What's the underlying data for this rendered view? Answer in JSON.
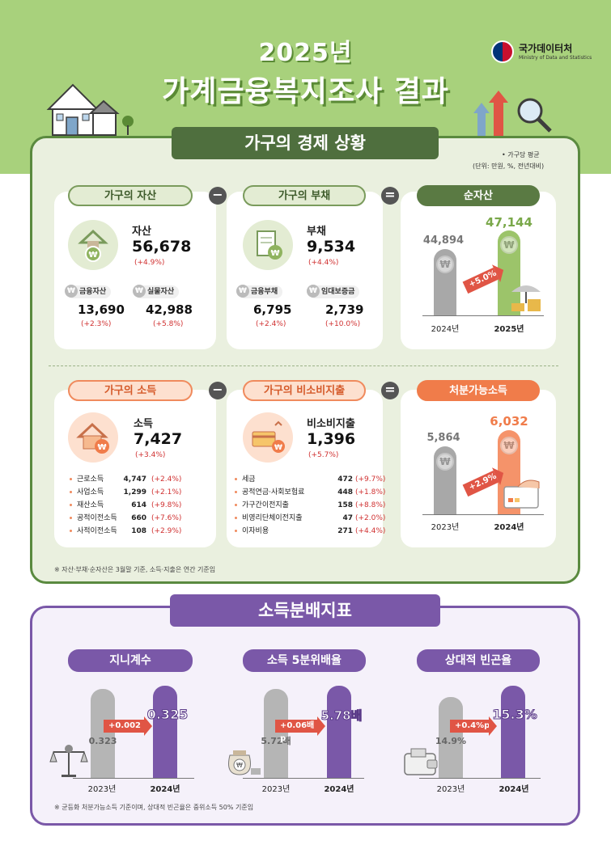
{
  "header": {
    "year": "2025년",
    "title": "가계금융복지조사 결과"
  },
  "logo": {
    "name_ko": "국가데이터처",
    "name_en": "Ministry of Data and Statistics"
  },
  "section1": {
    "title": "가구의 경제 상황",
    "unit_note1": "• 가구당 평균",
    "unit_note2": "(단위: 만원, %, 전년대비)"
  },
  "assets": {
    "pill": "가구의 자산",
    "label": "자산",
    "value": "56,678",
    "change": "(+4.9%)",
    "fin_label": "금융자산",
    "fin_value": "13,690",
    "fin_change": "(+2.3%)",
    "real_label": "실물자산",
    "real_value": "42,988",
    "real_change": "(+5.8%)"
  },
  "debt": {
    "pill": "가구의 부채",
    "label": "부채",
    "value": "9,534",
    "change": "(+4.4%)",
    "fin_label": "금융부채",
    "fin_value": "6,795",
    "fin_change": "(+2.4%)",
    "dep_label": "임대보증금",
    "dep_value": "2,739",
    "dep_change": "(+10.0%)"
  },
  "net_assets": {
    "pill": "순자산",
    "v2024": "44,894",
    "v2025": "47,144",
    "arrow": "+5.0%",
    "y1": "2024년",
    "y2": "2025년"
  },
  "income": {
    "pill": "가구의 소득",
    "label": "소득",
    "value": "7,427",
    "change": "(+3.4%)",
    "items": [
      {
        "label": "근로소득",
        "value": "4,747",
        "change": "(+2.4%)"
      },
      {
        "label": "사업소득",
        "value": "1,299",
        "change": "(+2.1%)"
      },
      {
        "label": "재산소득",
        "value": "614",
        "change": "(+9.8%)"
      },
      {
        "label": "공적이전소득",
        "value": "660",
        "change": "(+7.6%)"
      },
      {
        "label": "사적이전소득",
        "value": "108",
        "change": "(+2.9%)"
      }
    ]
  },
  "nonconsumption": {
    "pill": "가구의 비소비지출",
    "label": "비소비지출",
    "value": "1,396",
    "change": "(+5.7%)",
    "items": [
      {
        "label": "세금",
        "value": "472",
        "change": "(+9.7%)"
      },
      {
        "label": "공적연금·사회보험료",
        "value": "448",
        "change": "(+1.8%)"
      },
      {
        "label": "가구간이전지출",
        "value": "158",
        "change": "(+8.8%)"
      },
      {
        "label": "비영리단체이전지출",
        "value": "47",
        "change": "(+2.0%)"
      },
      {
        "label": "이자비용",
        "value": "271",
        "change": "(+4.4%)"
      }
    ]
  },
  "disposable": {
    "pill": "처분가능소득",
    "v2023": "5,864",
    "v2024": "6,032",
    "arrow": "+2.9%",
    "y1": "2023년",
    "y2": "2024년"
  },
  "note1": "※ 자산·부채·순자산은 3월말 기준, 소득·지출은 연간 기준임",
  "section2": {
    "title": "소득분배지표"
  },
  "gini": {
    "pill": "지니계수",
    "v2023": "0.323",
    "v2024": "0.325",
    "arrow": "+0.002",
    "y1": "2023년",
    "y2": "2024년"
  },
  "quintile": {
    "pill": "소득 5분위배율",
    "v2023": "5.72배",
    "v2024": "5.78배",
    "arrow": "+0.06배p",
    "y1": "2023년",
    "y2": "2024년"
  },
  "poverty": {
    "pill": "상대적 빈곤율",
    "v2023": "14.9%",
    "v2024": "15.3%",
    "arrow": "+0.4%p",
    "y1": "2023년",
    "y2": "2024년"
  },
  "note2": "※ 균등화 처분가능소득 기준이며, 상대적 빈곤율은 중위소득 50% 기준임",
  "colors": {
    "green": "#5a7a43",
    "orange": "#f07c4a",
    "purple": "#7a58a8",
    "red": "#e05545"
  }
}
